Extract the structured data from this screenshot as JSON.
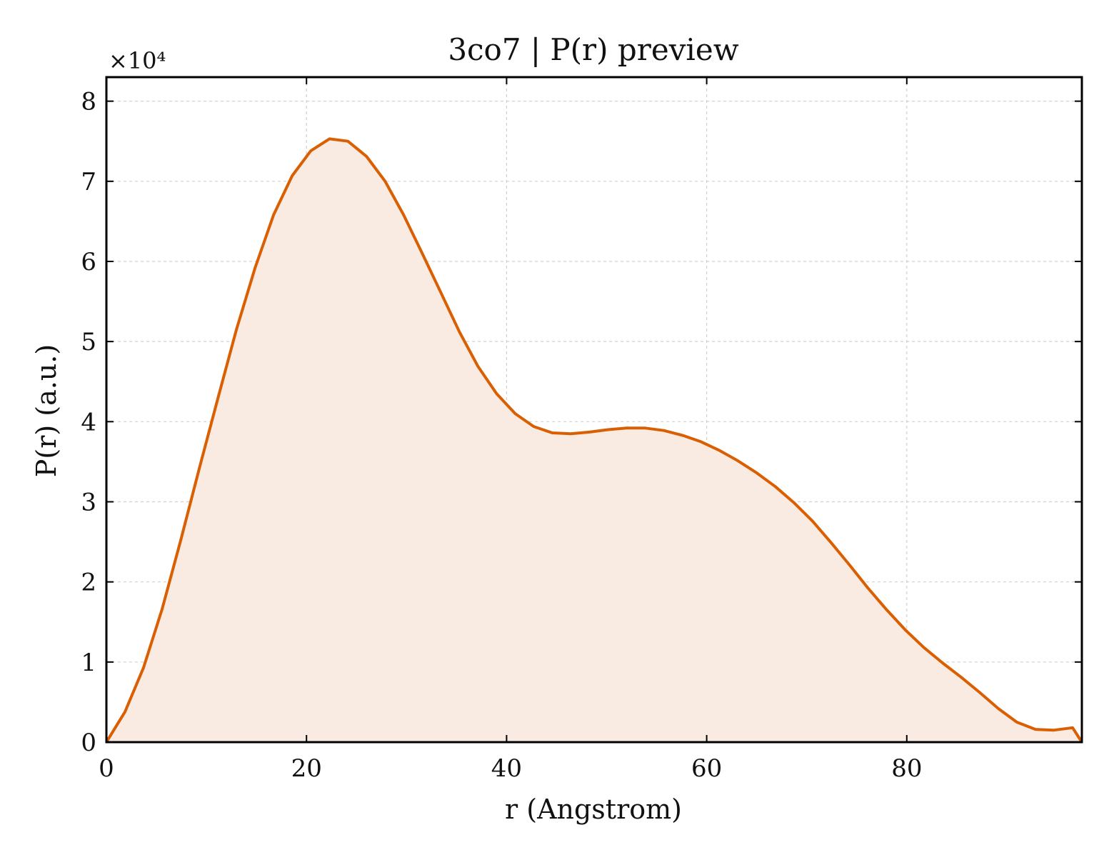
{
  "chart_data": {
    "type": "area",
    "title": "3co7 | P(r) preview",
    "xlabel": "r (Angstrom)",
    "ylabel": "P(r) (a.u.)",
    "y_multiplier_label": "×10⁴",
    "y_scale_factor": 10000,
    "xlim": [
      0,
      97.5
    ],
    "ylim": [
      0,
      83000
    ],
    "x_ticks": [
      0,
      20,
      40,
      60,
      80
    ],
    "y_ticks": [
      0,
      1,
      2,
      3,
      4,
      5,
      6,
      7,
      8
    ],
    "grid": true,
    "series": [
      {
        "x": [
          0,
          1.86,
          3.71,
          5.57,
          7.43,
          9.29,
          11.14,
          13.0,
          14.86,
          16.71,
          18.57,
          20.43,
          22.29,
          24.14,
          26.0,
          27.86,
          29.71,
          31.57,
          33.43,
          35.29,
          37.14,
          39.0,
          40.86,
          42.71,
          44.57,
          46.43,
          48.29,
          50.14,
          52.0,
          53.86,
          55.71,
          57.57,
          59.43,
          61.29,
          63.14,
          65.0,
          66.86,
          68.71,
          70.57,
          72.43,
          74.29,
          76.14,
          78.0,
          79.86,
          81.71,
          83.57,
          85.43,
          87.29,
          89.14,
          91.0,
          92.86,
          94.71,
          96.57,
          97.5
        ],
        "y": [
          0,
          3800,
          9300,
          16600,
          25200,
          34200,
          42900,
          51500,
          59200,
          65800,
          70700,
          73800,
          75300,
          75000,
          73100,
          70000,
          65800,
          61000,
          56100,
          51200,
          46900,
          43500,
          41000,
          39400,
          38600,
          38500,
          38700,
          39000,
          39200,
          39200,
          38900,
          38300,
          37500,
          36400,
          35100,
          33600,
          31900,
          29900,
          27600,
          24900,
          22100,
          19200,
          16500,
          14000,
          11800,
          9900,
          8100,
          6200,
          4200,
          2500,
          1600,
          1500,
          1800,
          0
        ]
      }
    ],
    "colors": {
      "line": "#d95f02",
      "fill": "#f9ebe1",
      "grid": "#d0d0d0",
      "axes": "#000000"
    }
  }
}
